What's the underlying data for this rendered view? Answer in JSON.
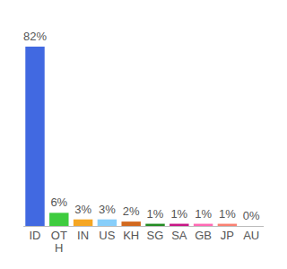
{
  "chart_data": {
    "type": "bar",
    "categories": [
      "ID",
      "OTH",
      "IN",
      "US",
      "KH",
      "SG",
      "SA",
      "GB",
      "JP",
      "AU"
    ],
    "values": [
      82,
      6,
      3,
      3,
      2,
      1,
      1,
      1,
      1,
      0
    ],
    "value_labels": [
      "82%",
      "6%",
      "3%",
      "3%",
      "2%",
      "1%",
      "1%",
      "1%",
      "1%",
      "0%"
    ],
    "colors": [
      "#4169e1",
      "#3ecc3e",
      "#f5a623",
      "#87cefa",
      "#d2691e",
      "#228b22",
      "#c71585",
      "#ff69b4",
      "#fa8072",
      "#9b8fb0"
    ],
    "ylim": [
      0,
      82
    ],
    "data_labels": true,
    "tick_labels": "x"
  }
}
